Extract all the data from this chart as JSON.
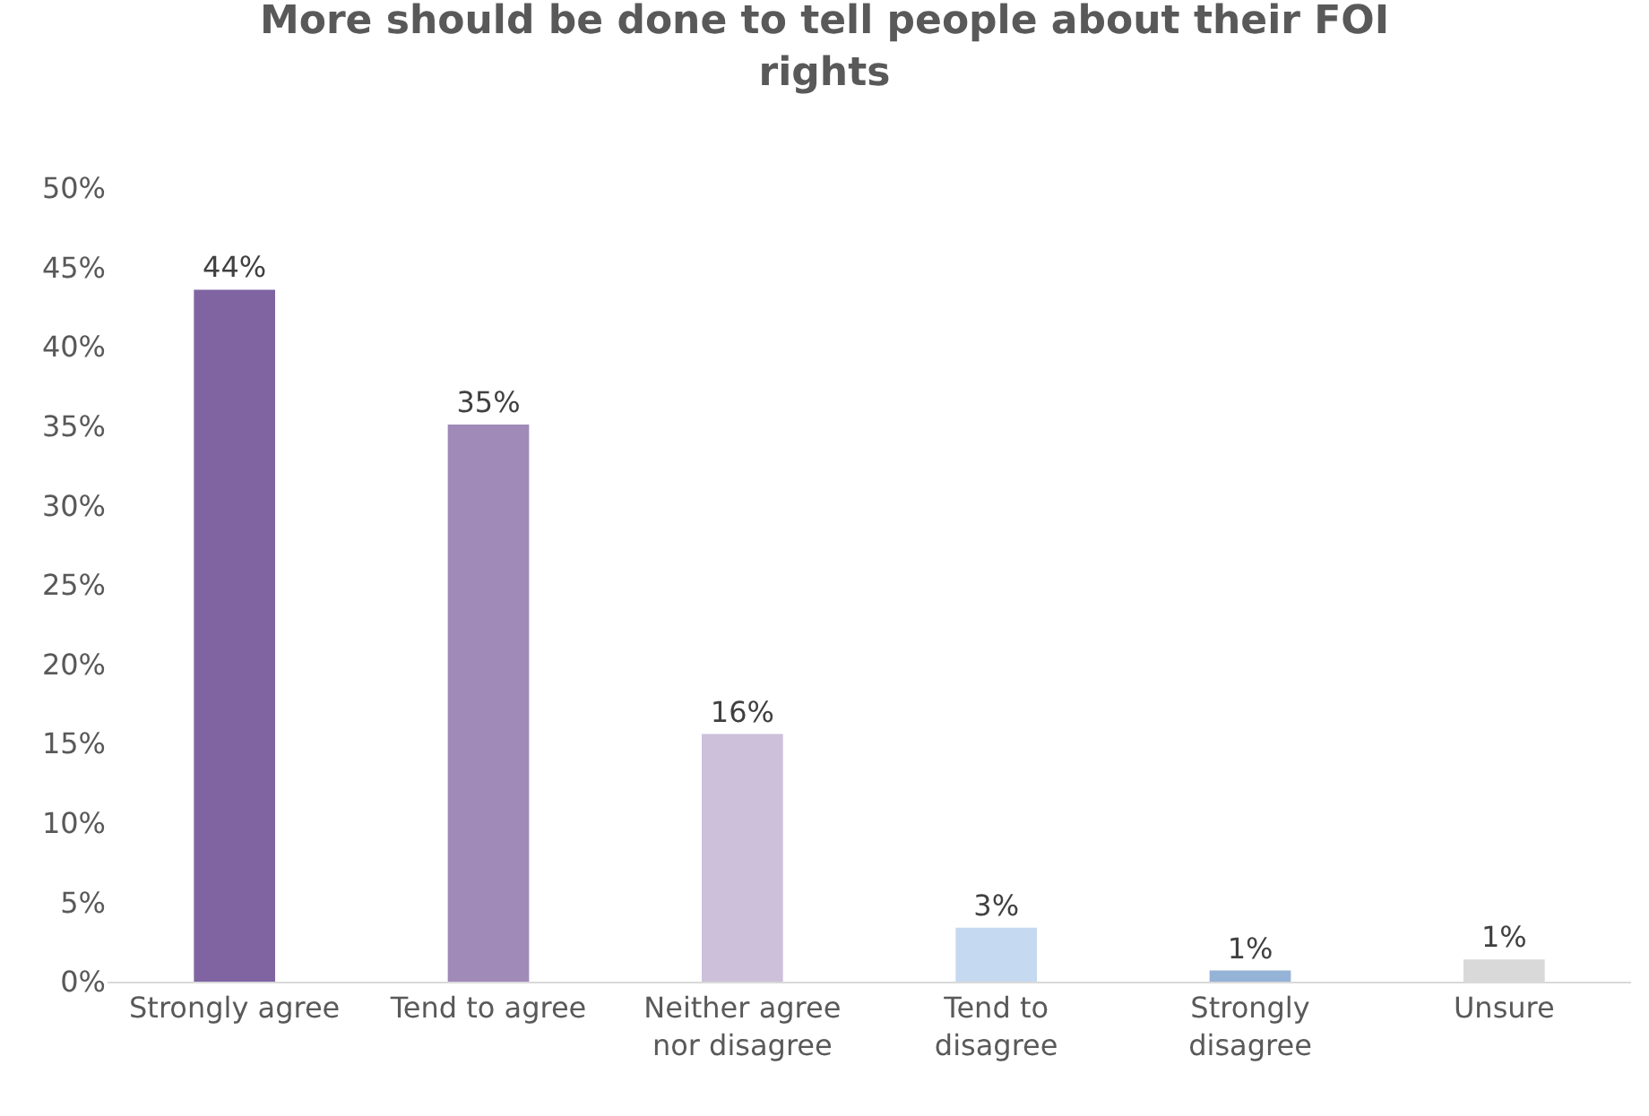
{
  "chart_data": {
    "type": "bar",
    "title": "More should be done to tell people about their FOI\nrights",
    "categories": [
      "Strongly agree",
      "Tend to agree",
      "Neither agree\nnor disagree",
      "Tend to\ndisagree",
      "Strongly\ndisagree",
      "Unsure"
    ],
    "values": [
      43.6,
      35.1,
      15.6,
      3.4,
      0.7,
      1.4
    ],
    "colors": [
      "#8064a2",
      "#a08ab8",
      "#ccc0da",
      "#c5d9f1",
      "#95b3d7",
      "#d9d9d9"
    ],
    "value_labels": [
      "44%",
      "35%",
      "16%",
      "3%",
      "1%",
      "1%"
    ],
    "ylim": [
      0,
      50
    ],
    "yticks": [
      {
        "value": 0,
        "label": "0%"
      },
      {
        "value": 5,
        "label": "5%"
      },
      {
        "value": 10,
        "label": "10%"
      },
      {
        "value": 15,
        "label": "15%"
      },
      {
        "value": 20,
        "label": "20%"
      },
      {
        "value": 25,
        "label": "25%"
      },
      {
        "value": 30,
        "label": "30%"
      },
      {
        "value": 35,
        "label": "35%"
      },
      {
        "value": 40,
        "label": "40%"
      },
      {
        "value": 45,
        "label": "45%"
      },
      {
        "value": 50,
        "label": "50%"
      }
    ],
    "grid": false
  }
}
